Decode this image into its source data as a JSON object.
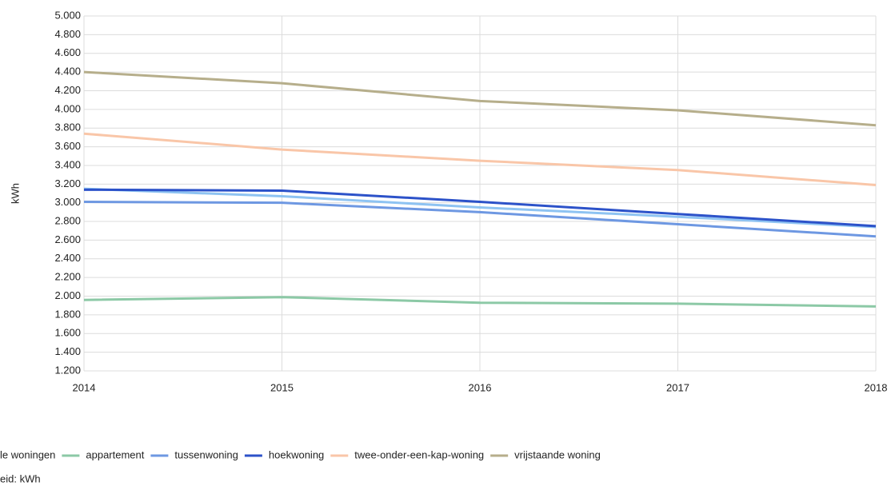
{
  "chart_data": {
    "type": "line",
    "y_label": "kWh",
    "x": [
      2014,
      2015,
      2016,
      2017,
      2018
    ],
    "xlim": [
      2014,
      2018
    ],
    "xticks": [
      2014,
      2015,
      2016,
      2017,
      2018
    ],
    "ylim": [
      1200,
      5000
    ],
    "yticks": [
      {
        "value": 1200,
        "label": "1.200"
      },
      {
        "value": 1400,
        "label": "1.400"
      },
      {
        "value": 1600,
        "label": "1.600"
      },
      {
        "value": 1800,
        "label": "1.800"
      },
      {
        "value": 2000,
        "label": "2.000"
      },
      {
        "value": 2200,
        "label": "2.200"
      },
      {
        "value": 2400,
        "label": "2.400"
      },
      {
        "value": 2600,
        "label": "2.600"
      },
      {
        "value": 2800,
        "label": "2.800"
      },
      {
        "value": 3000,
        "label": "3.000"
      },
      {
        "value": 3200,
        "label": "3.200"
      },
      {
        "value": 3400,
        "label": "3.400"
      },
      {
        "value": 3600,
        "label": "3.600"
      },
      {
        "value": 3800,
        "label": "3.800"
      },
      {
        "value": 4000,
        "label": "4.000"
      },
      {
        "value": 4200,
        "label": "4.200"
      },
      {
        "value": 4400,
        "label": "4.400"
      },
      {
        "value": 4600,
        "label": "4.600"
      },
      {
        "value": 4800,
        "label": "4.800"
      },
      {
        "value": 5000,
        "label": "5.000"
      }
    ],
    "grid": true,
    "series": [
      {
        "name": "le woningen",
        "color": "#8ec3f2",
        "values": [
          3150,
          3070,
          2950,
          2850,
          2740
        ]
      },
      {
        "name": "appartement",
        "color": "#8cc9a6",
        "values": [
          1960,
          1990,
          1930,
          1920,
          1890
        ]
      },
      {
        "name": "tussenwoning",
        "color": "#6e98e2",
        "values": [
          3010,
          3000,
          2900,
          2770,
          2640
        ]
      },
      {
        "name": "hoekwoning",
        "color": "#2c52c9",
        "values": [
          3140,
          3130,
          3010,
          2880,
          2750
        ]
      },
      {
        "name": "twee-onder-een-kap-woning",
        "color": "#f9c6a8",
        "values": [
          3740,
          3570,
          3450,
          3350,
          3190
        ]
      },
      {
        "name": "vrijstaande woning",
        "color": "#b6ae8b",
        "values": [
          4400,
          4280,
          4090,
          3990,
          3830
        ]
      }
    ],
    "footnote": "eid: kWh"
  }
}
